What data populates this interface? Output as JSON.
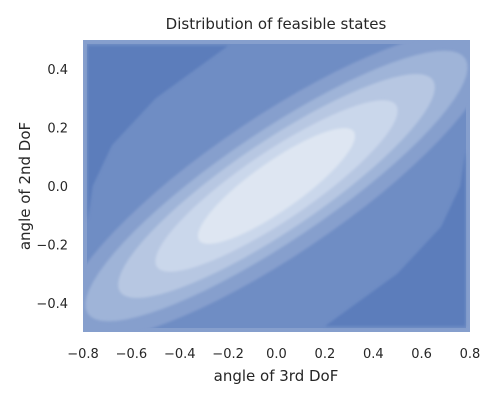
{
  "chart_data": {
    "type": "contour",
    "title": "Distribution of feasible states",
    "xlabel": "angle of 3rd DoF",
    "ylabel": "angle of 2nd DoF",
    "xlim": [
      -0.8,
      0.8
    ],
    "ylim": [
      -0.5,
      0.5
    ],
    "xticks": [
      "−0.8",
      "−0.6",
      "−0.4",
      "−0.2",
      "0.0",
      "0.2",
      "0.4",
      "0.6",
      "0.8"
    ],
    "xtick_values": [
      -0.8,
      -0.6,
      -0.4,
      -0.2,
      0.0,
      0.2,
      0.4,
      0.6,
      0.8
    ],
    "yticks": [
      "−0.4",
      "−0.2",
      "0.0",
      "0.2",
      "0.4"
    ],
    "ytick_values": [
      -0.4,
      -0.2,
      0.0,
      0.2,
      0.4
    ],
    "grid": false,
    "legend": "none",
    "colors": [
      "#5b7dbb",
      "#6f8dc4",
      "#869fcd",
      "#9fb4d8",
      "#b7c7e2",
      "#cad7eb",
      "#dee6f2"
    ],
    "levels": [
      {
        "level": 1,
        "center": [
          0.0,
          0.0
        ],
        "a": 0.92,
        "b": 0.24,
        "angle_deg": 32
      },
      {
        "level": 2,
        "center": [
          0.0,
          0.0
        ],
        "a": 0.82,
        "b": 0.19,
        "angle_deg": 32
      },
      {
        "level": 3,
        "center": [
          0.0,
          0.0
        ],
        "a": 0.68,
        "b": 0.155,
        "angle_deg": 32
      },
      {
        "level": 4,
        "center": [
          0.0,
          0.0
        ],
        "a": 0.52,
        "b": 0.12,
        "angle_deg": 32
      },
      {
        "level": 5,
        "center": [
          0.0,
          0.0
        ],
        "a": 0.34,
        "b": 0.085,
        "angle_deg": 33
      },
      {
        "level": 6,
        "center": [
          -0.02,
          0.01
        ],
        "a": 0.18,
        "b": 0.055,
        "angle_deg": 34
      }
    ]
  }
}
